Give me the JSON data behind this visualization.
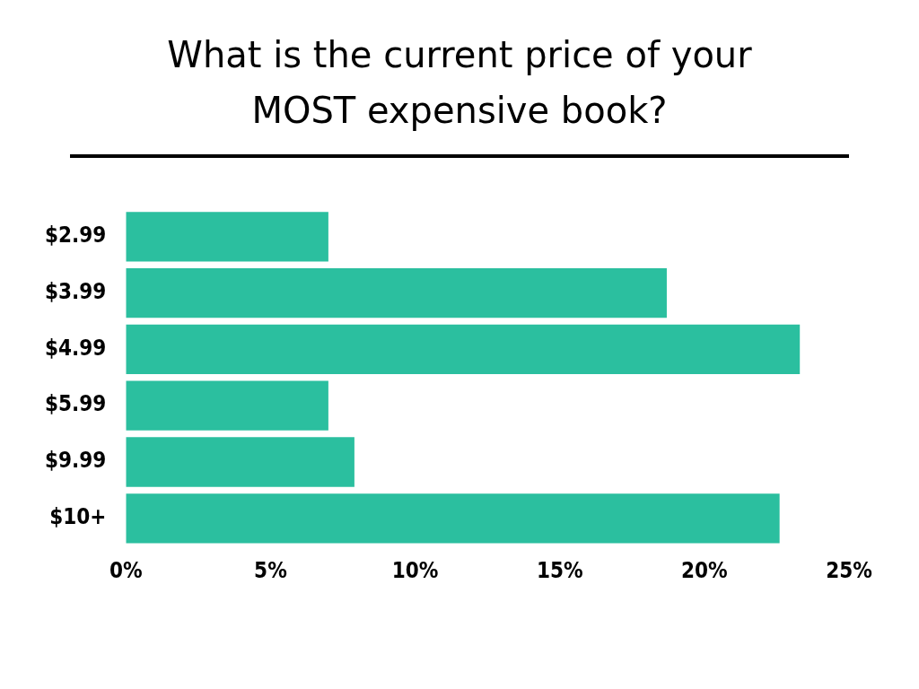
{
  "chart_data": {
    "type": "bar",
    "orientation": "horizontal",
    "title": "What is the current price of your MOST expensive book?",
    "categories": [
      "$2.99",
      "$3.99",
      "$4.99",
      "$5.99",
      "$9.99",
      "$10+"
    ],
    "values": [
      7,
      18.7,
      23.3,
      7,
      7.9,
      22.6
    ],
    "color": "#2bbf9f",
    "xlim": [
      0,
      25
    ],
    "xticks": [
      {
        "value": 0,
        "label": "0%"
      },
      {
        "value": 5,
        "label": "5%"
      },
      {
        "value": 10,
        "label": "10%"
      },
      {
        "value": 15,
        "label": "15%"
      },
      {
        "value": 20,
        "label": "20%"
      },
      {
        "value": 25,
        "label": "25%"
      }
    ],
    "grid": false,
    "legend": false
  }
}
